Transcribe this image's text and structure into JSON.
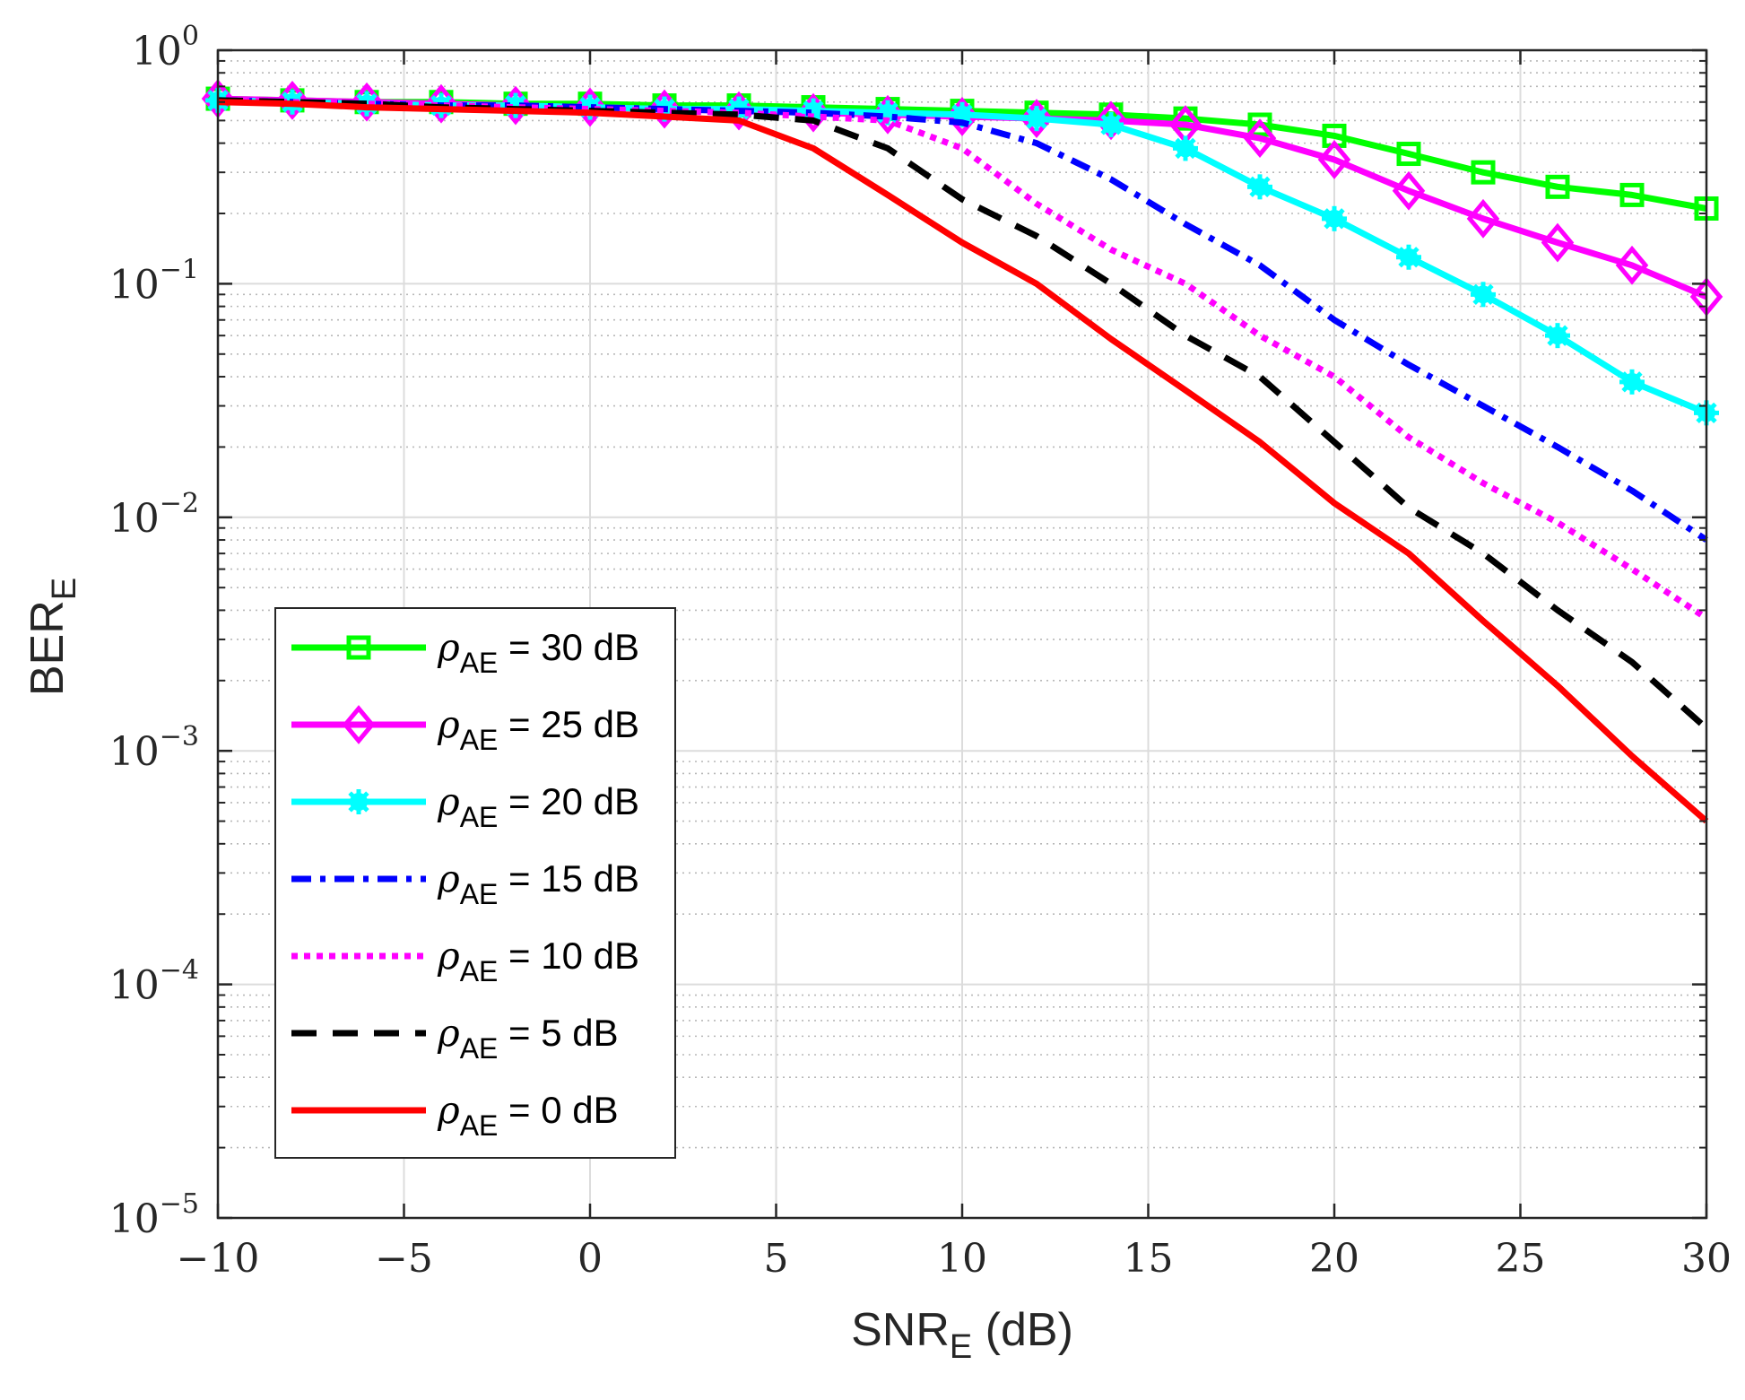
{
  "chart_data": {
    "type": "line",
    "title": "",
    "xlabel": {
      "main": "SNR",
      "sub": "E",
      "suffix": " (dB)"
    },
    "ylabel": {
      "main": "BER",
      "sub": "E"
    },
    "xlim": [
      -10,
      30
    ],
    "ylim": [
      1e-05,
      1
    ],
    "yscale": "log",
    "grid": true,
    "legend_position": "lower-left",
    "x_ticks": [
      {
        "value": -10,
        "label": "−10"
      },
      {
        "value": -5,
        "label": "−5"
      },
      {
        "value": 0,
        "label": "0"
      },
      {
        "value": 5,
        "label": "5"
      },
      {
        "value": 10,
        "label": "10"
      },
      {
        "value": 15,
        "label": "15"
      },
      {
        "value": 20,
        "label": "20"
      },
      {
        "value": 25,
        "label": "25"
      },
      {
        "value": 30,
        "label": "30"
      }
    ],
    "y_ticks": [
      {
        "value": 1,
        "base": "10",
        "exp": "0"
      },
      {
        "value": 0.1,
        "base": "10",
        "exp": "−1"
      },
      {
        "value": 0.01,
        "base": "10",
        "exp": "−2"
      },
      {
        "value": 0.001,
        "base": "10",
        "exp": "−3"
      },
      {
        "value": 0.0001,
        "base": "10",
        "exp": "−4"
      },
      {
        "value": 1e-05,
        "base": "10",
        "exp": "−5"
      }
    ],
    "x": [
      -10,
      -8,
      -6,
      -4,
      -2,
      0,
      2,
      4,
      6,
      8,
      10,
      12,
      14,
      16,
      18,
      20,
      22,
      24,
      26,
      28,
      30
    ],
    "series": [
      {
        "symbol": "ρ",
        "sub": "AE",
        "suffix": " = 30 dB",
        "color": "#00ff00",
        "dash": "solid",
        "marker": "square",
        "values": [
          0.62,
          0.61,
          0.6,
          0.6,
          0.59,
          0.59,
          0.58,
          0.58,
          0.57,
          0.56,
          0.55,
          0.54,
          0.53,
          0.51,
          0.48,
          0.43,
          0.36,
          0.3,
          0.26,
          0.24,
          0.21
        ]
      },
      {
        "symbol": "ρ",
        "sub": "AE",
        "suffix": " = 25 dB",
        "color": "#ff00ff",
        "dash": "solid",
        "marker": "diamond",
        "values": [
          0.62,
          0.61,
          0.6,
          0.59,
          0.58,
          0.57,
          0.56,
          0.55,
          0.54,
          0.53,
          0.52,
          0.51,
          0.5,
          0.48,
          0.42,
          0.34,
          0.25,
          0.19,
          0.15,
          0.12,
          0.088
        ]
      },
      {
        "symbol": "ρ",
        "sub": "AE",
        "suffix": " = 20 dB",
        "color": "#00ffff",
        "dash": "solid",
        "marker": "asterisk",
        "values": [
          0.61,
          0.6,
          0.59,
          0.58,
          0.58,
          0.57,
          0.56,
          0.56,
          0.55,
          0.54,
          0.53,
          0.51,
          0.48,
          0.38,
          0.26,
          0.19,
          0.13,
          0.09,
          0.06,
          0.038,
          0.028
        ]
      },
      {
        "symbol": "ρ",
        "sub": "AE",
        "suffix": " = 15 dB",
        "color": "#0000ff",
        "dash": "dashdot",
        "marker": "none",
        "values": [
          0.61,
          0.6,
          0.59,
          0.58,
          0.58,
          0.57,
          0.56,
          0.55,
          0.54,
          0.52,
          0.49,
          0.4,
          0.28,
          0.18,
          0.12,
          0.07,
          0.045,
          0.03,
          0.02,
          0.013,
          0.008
        ]
      },
      {
        "symbol": "ρ",
        "sub": "AE",
        "suffix": " = 10 dB",
        "color": "#ff00ff",
        "dash": "dotted",
        "marker": "none",
        "values": [
          0.61,
          0.6,
          0.59,
          0.58,
          0.57,
          0.56,
          0.55,
          0.54,
          0.52,
          0.5,
          0.38,
          0.22,
          0.14,
          0.1,
          0.06,
          0.04,
          0.022,
          0.014,
          0.0095,
          0.006,
          0.0037
        ]
      },
      {
        "symbol": "ρ",
        "sub": "AE",
        "suffix": " = 5 dB",
        "color": "#000000",
        "dash": "dashed",
        "marker": "none",
        "values": [
          0.61,
          0.6,
          0.59,
          0.57,
          0.56,
          0.55,
          0.54,
          0.53,
          0.5,
          0.38,
          0.23,
          0.16,
          0.1,
          0.06,
          0.04,
          0.021,
          0.011,
          0.007,
          0.004,
          0.0024,
          0.00125
        ]
      },
      {
        "symbol": "ρ",
        "sub": "AE",
        "suffix": " = 0 dB",
        "color": "#ff0000",
        "dash": "solid",
        "marker": "none",
        "values": [
          0.6,
          0.59,
          0.57,
          0.56,
          0.55,
          0.54,
          0.52,
          0.5,
          0.38,
          0.24,
          0.15,
          0.1,
          0.058,
          0.035,
          0.021,
          0.0115,
          0.007,
          0.0036,
          0.0019,
          0.00095,
          0.0005
        ]
      }
    ]
  }
}
